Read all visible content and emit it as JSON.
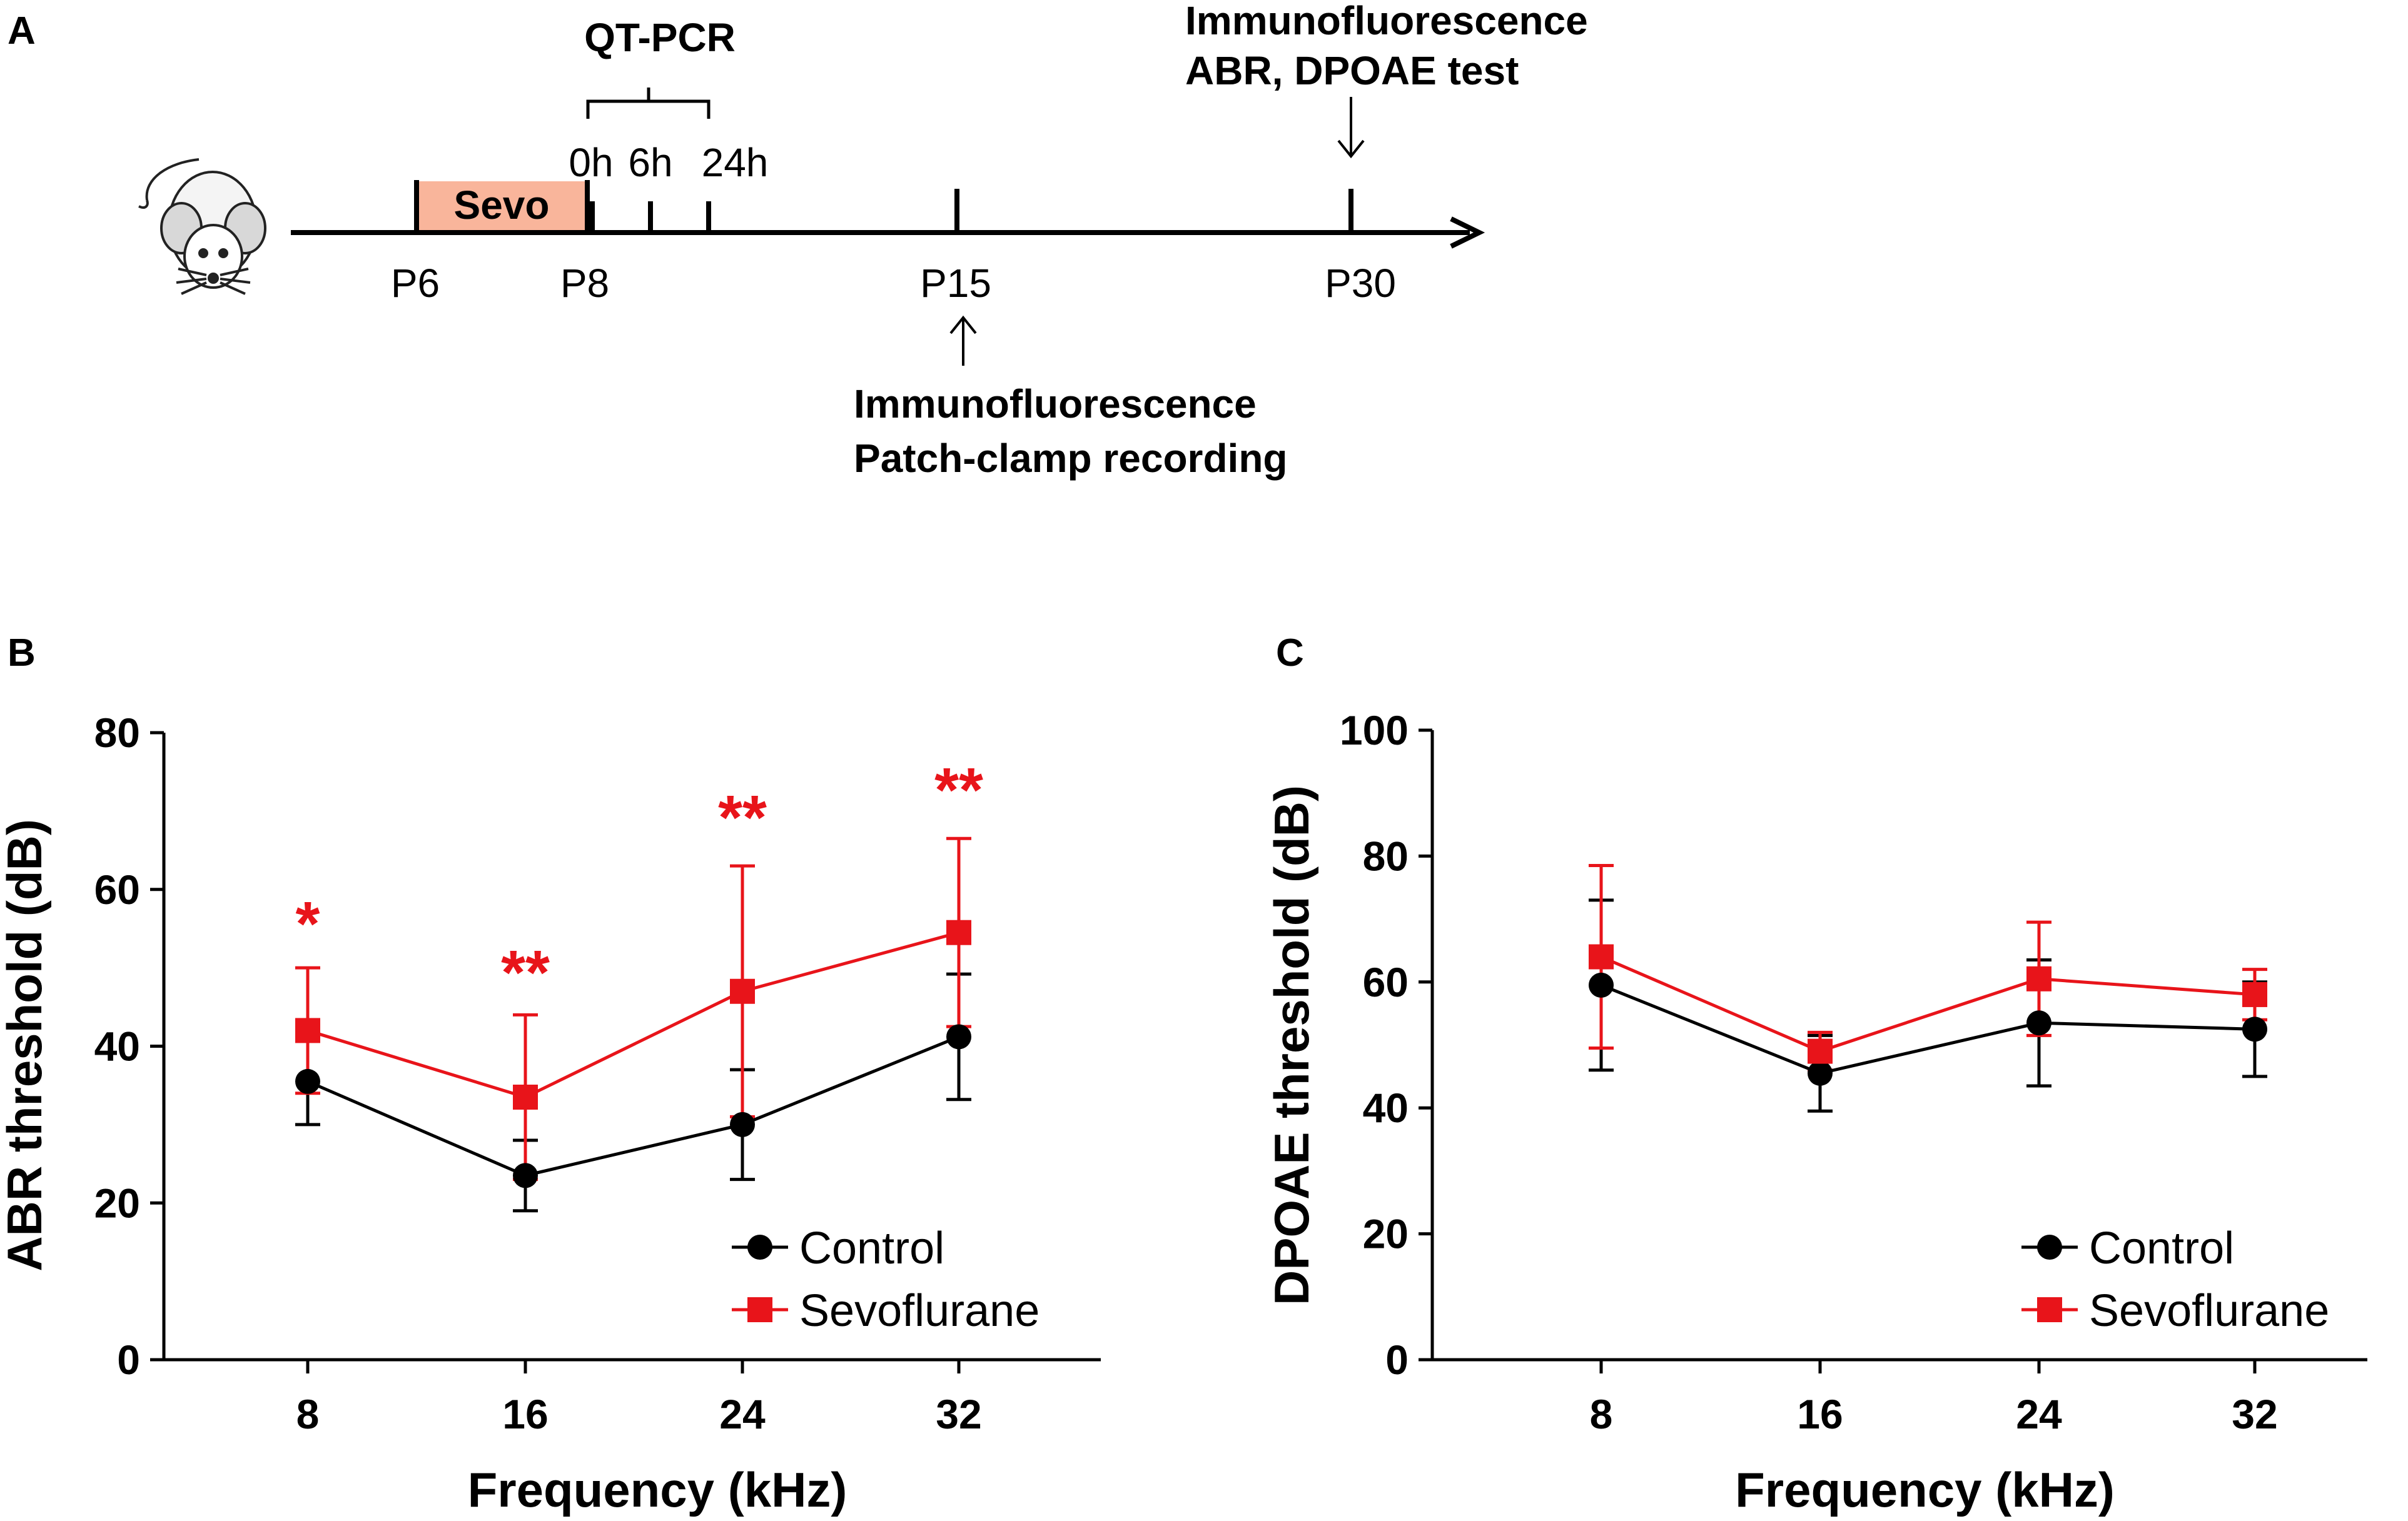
{
  "panel_a": {
    "letter": "A",
    "timeline": {
      "sevo_label": "Sevo",
      "day_labels": [
        "P6",
        "P8",
        "P15",
        "P30"
      ],
      "hour_labels": [
        "0h",
        "6h",
        "24h"
      ],
      "qtpcr_label": "QT-PCR",
      "p30_notes": [
        "Immunofluorescence",
        "ABR, DPOAE test"
      ],
      "p15_notes": [
        "Immunofluorescence",
        "Patch-clamp recording"
      ]
    },
    "colors": {
      "sevo_fill": "#f9b59b",
      "line": "#000000"
    }
  },
  "chart_data": [
    {
      "panel": "B",
      "type": "line",
      "title": "",
      "xlabel": "Frequency (kHz)",
      "ylabel": "ABR  threshold (dB)",
      "categories": [
        "8",
        "16",
        "24",
        "32"
      ],
      "ylim": [
        0,
        80
      ],
      "yticks": [
        0,
        20,
        40,
        60,
        80
      ],
      "legend": "bottom-right",
      "series": [
        {
          "name": "Control",
          "color": "#000000",
          "marker": "circle",
          "values": [
            35.5,
            23.5,
            30,
            41.2
          ],
          "errors": [
            5.5,
            4.5,
            7,
            8
          ]
        },
        {
          "name": "Sevoflurane",
          "color": "#e8141a",
          "marker": "square",
          "values": [
            42,
            33.5,
            47,
            54.5
          ],
          "errors": [
            8,
            10.5,
            16,
            12
          ]
        }
      ],
      "annotations": [
        "*",
        "**",
        "**",
        "**"
      ]
    },
    {
      "panel": "C",
      "type": "line",
      "title": "",
      "xlabel": "Frequency (kHz)",
      "ylabel": "DPOAE  threshold (dB)",
      "categories": [
        "8",
        "16",
        "24",
        "32"
      ],
      "ylim": [
        0,
        100
      ],
      "yticks": [
        0,
        20,
        40,
        60,
        80,
        100
      ],
      "legend": "bottom-right",
      "series": [
        {
          "name": "Control",
          "color": "#000000",
          "marker": "circle",
          "values": [
            59.5,
            45.5,
            53.5,
            52.5
          ],
          "errors": [
            13.5,
            6,
            10,
            7.5
          ]
        },
        {
          "name": "Sevoflurane",
          "color": "#e8141a",
          "marker": "square",
          "values": [
            64,
            49,
            60.5,
            58
          ],
          "errors": [
            14.5,
            3,
            9,
            4
          ]
        }
      ],
      "annotations": []
    }
  ]
}
